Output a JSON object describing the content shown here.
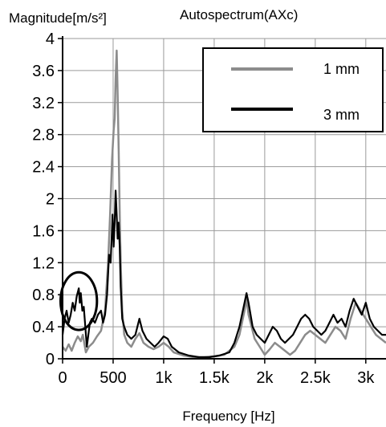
{
  "chart_data": {
    "type": "line",
    "title": "Autospectrum(AXc)",
    "ylabel": "Magnitude[m/s²]",
    "xlabel": "Frequency [Hz]",
    "xlim": [
      0,
      3200
    ],
    "ylim": [
      0,
      4
    ],
    "x_ticks": [
      {
        "value": 0,
        "label": "0"
      },
      {
        "value": 500,
        "label": "500"
      },
      {
        "value": 1000,
        "label": "1k"
      },
      {
        "value": 1500,
        "label": "1.5k"
      },
      {
        "value": 2000,
        "label": "2k"
      },
      {
        "value": 2500,
        "label": "2.5k"
      },
      {
        "value": 3000,
        "label": "3k"
      }
    ],
    "y_ticks": [
      {
        "value": 0,
        "label": "0"
      },
      {
        "value": 0.4,
        "label": "0.4"
      },
      {
        "value": 0.8,
        "label": "0.8"
      },
      {
        "value": 1.2,
        "label": "1.2"
      },
      {
        "value": 1.6,
        "label": "1.6"
      },
      {
        "value": 2,
        "label": "2"
      },
      {
        "value": 2.4,
        "label": "2.4"
      },
      {
        "value": 2.8,
        "label": "2.8"
      },
      {
        "value": 3.2,
        "label": "3.2"
      },
      {
        "value": 3.6,
        "label": "3.6"
      },
      {
        "value": 4,
        "label": "4"
      }
    ],
    "grid": true,
    "legend_position": "top-right",
    "annotation": {
      "shape": "ellipse",
      "center": [
        160,
        0.72
      ],
      "radius": [
        180,
        0.36
      ]
    },
    "series": [
      {
        "name": "1 mm",
        "color": "#8c8c8c",
        "points": [
          [
            0,
            0.15
          ],
          [
            30,
            0.1
          ],
          [
            60,
            0.18
          ],
          [
            90,
            0.1
          ],
          [
            120,
            0.2
          ],
          [
            150,
            0.28
          ],
          [
            180,
            0.22
          ],
          [
            200,
            0.3
          ],
          [
            230,
            0.08
          ],
          [
            260,
            0.15
          ],
          [
            300,
            0.2
          ],
          [
            340,
            0.28
          ],
          [
            380,
            0.35
          ],
          [
            420,
            0.6
          ],
          [
            450,
            1.2
          ],
          [
            470,
            1.8
          ],
          [
            490,
            2.5
          ],
          [
            505,
            2.85
          ],
          [
            515,
            3.0
          ],
          [
            525,
            3.5
          ],
          [
            535,
            3.85
          ],
          [
            545,
            3.3
          ],
          [
            555,
            2.6
          ],
          [
            565,
            1.8
          ],
          [
            575,
            1.2
          ],
          [
            590,
            0.6
          ],
          [
            610,
            0.3
          ],
          [
            640,
            0.2
          ],
          [
            680,
            0.15
          ],
          [
            720,
            0.25
          ],
          [
            760,
            0.32
          ],
          [
            800,
            0.2
          ],
          [
            850,
            0.15
          ],
          [
            900,
            0.12
          ],
          [
            950,
            0.15
          ],
          [
            1000,
            0.2
          ],
          [
            1050,
            0.15
          ],
          [
            1100,
            0.08
          ],
          [
            1200,
            0.04
          ],
          [
            1300,
            0.02
          ],
          [
            1400,
            0.02
          ],
          [
            1500,
            0.03
          ],
          [
            1600,
            0.05
          ],
          [
            1700,
            0.15
          ],
          [
            1750,
            0.3
          ],
          [
            1800,
            0.6
          ],
          [
            1820,
            0.75
          ],
          [
            1840,
            0.55
          ],
          [
            1900,
            0.25
          ],
          [
            1950,
            0.15
          ],
          [
            2000,
            0.05
          ],
          [
            2050,
            0.12
          ],
          [
            2100,
            0.2
          ],
          [
            2150,
            0.15
          ],
          [
            2200,
            0.1
          ],
          [
            2250,
            0.05
          ],
          [
            2300,
            0.1
          ],
          [
            2350,
            0.2
          ],
          [
            2400,
            0.3
          ],
          [
            2450,
            0.35
          ],
          [
            2500,
            0.3
          ],
          [
            2550,
            0.25
          ],
          [
            2600,
            0.2
          ],
          [
            2650,
            0.3
          ],
          [
            2700,
            0.4
          ],
          [
            2750,
            0.35
          ],
          [
            2800,
            0.25
          ],
          [
            2850,
            0.5
          ],
          [
            2900,
            0.7
          ],
          [
            2950,
            0.6
          ],
          [
            3000,
            0.5
          ],
          [
            3050,
            0.4
          ],
          [
            3100,
            0.3
          ],
          [
            3150,
            0.25
          ],
          [
            3200,
            0.2
          ]
        ]
      },
      {
        "name": "3 mm",
        "color": "#000000",
        "points": [
          [
            0,
            0.3
          ],
          [
            20,
            0.5
          ],
          [
            40,
            0.6
          ],
          [
            60,
            0.45
          ],
          [
            80,
            0.55
          ],
          [
            100,
            0.7
          ],
          [
            120,
            0.6
          ],
          [
            140,
            0.78
          ],
          [
            160,
            0.88
          ],
          [
            170,
            0.7
          ],
          [
            180,
            0.82
          ],
          [
            195,
            0.6
          ],
          [
            210,
            0.65
          ],
          [
            225,
            0.4
          ],
          [
            240,
            0.15
          ],
          [
            255,
            0.3
          ],
          [
            270,
            0.45
          ],
          [
            290,
            0.5
          ],
          [
            320,
            0.45
          ],
          [
            350,
            0.55
          ],
          [
            380,
            0.6
          ],
          [
            400,
            0.45
          ],
          [
            420,
            0.55
          ],
          [
            440,
            0.8
          ],
          [
            460,
            1.3
          ],
          [
            475,
            1.2
          ],
          [
            485,
            1.5
          ],
          [
            495,
            1.8
          ],
          [
            505,
            1.4
          ],
          [
            515,
            1.7
          ],
          [
            525,
            2.1
          ],
          [
            535,
            1.8
          ],
          [
            545,
            1.5
          ],
          [
            555,
            1.7
          ],
          [
            565,
            1.4
          ],
          [
            575,
            0.9
          ],
          [
            590,
            0.5
          ],
          [
            610,
            0.4
          ],
          [
            640,
            0.3
          ],
          [
            680,
            0.25
          ],
          [
            720,
            0.3
          ],
          [
            760,
            0.5
          ],
          [
            790,
            0.35
          ],
          [
            830,
            0.25
          ],
          [
            870,
            0.2
          ],
          [
            910,
            0.15
          ],
          [
            950,
            0.2
          ],
          [
            1000,
            0.28
          ],
          [
            1040,
            0.25
          ],
          [
            1080,
            0.15
          ],
          [
            1150,
            0.08
          ],
          [
            1250,
            0.04
          ],
          [
            1350,
            0.02
          ],
          [
            1450,
            0.02
          ],
          [
            1550,
            0.04
          ],
          [
            1650,
            0.08
          ],
          [
            1700,
            0.2
          ],
          [
            1750,
            0.4
          ],
          [
            1800,
            0.7
          ],
          [
            1820,
            0.82
          ],
          [
            1840,
            0.7
          ],
          [
            1880,
            0.4
          ],
          [
            1920,
            0.3
          ],
          [
            1960,
            0.25
          ],
          [
            2000,
            0.2
          ],
          [
            2040,
            0.3
          ],
          [
            2080,
            0.4
          ],
          [
            2120,
            0.35
          ],
          [
            2160,
            0.25
          ],
          [
            2200,
            0.2
          ],
          [
            2240,
            0.25
          ],
          [
            2280,
            0.3
          ],
          [
            2320,
            0.4
          ],
          [
            2360,
            0.5
          ],
          [
            2400,
            0.55
          ],
          [
            2440,
            0.5
          ],
          [
            2480,
            0.4
          ],
          [
            2520,
            0.35
          ],
          [
            2560,
            0.3
          ],
          [
            2600,
            0.35
          ],
          [
            2640,
            0.45
          ],
          [
            2680,
            0.55
          ],
          [
            2720,
            0.45
          ],
          [
            2760,
            0.5
          ],
          [
            2800,
            0.4
          ],
          [
            2840,
            0.6
          ],
          [
            2880,
            0.75
          ],
          [
            2920,
            0.65
          ],
          [
            2960,
            0.55
          ],
          [
            3000,
            0.7
          ],
          [
            3040,
            0.5
          ],
          [
            3080,
            0.4
          ],
          [
            3120,
            0.35
          ],
          [
            3160,
            0.3
          ],
          [
            3200,
            0.3
          ]
        ]
      }
    ]
  }
}
